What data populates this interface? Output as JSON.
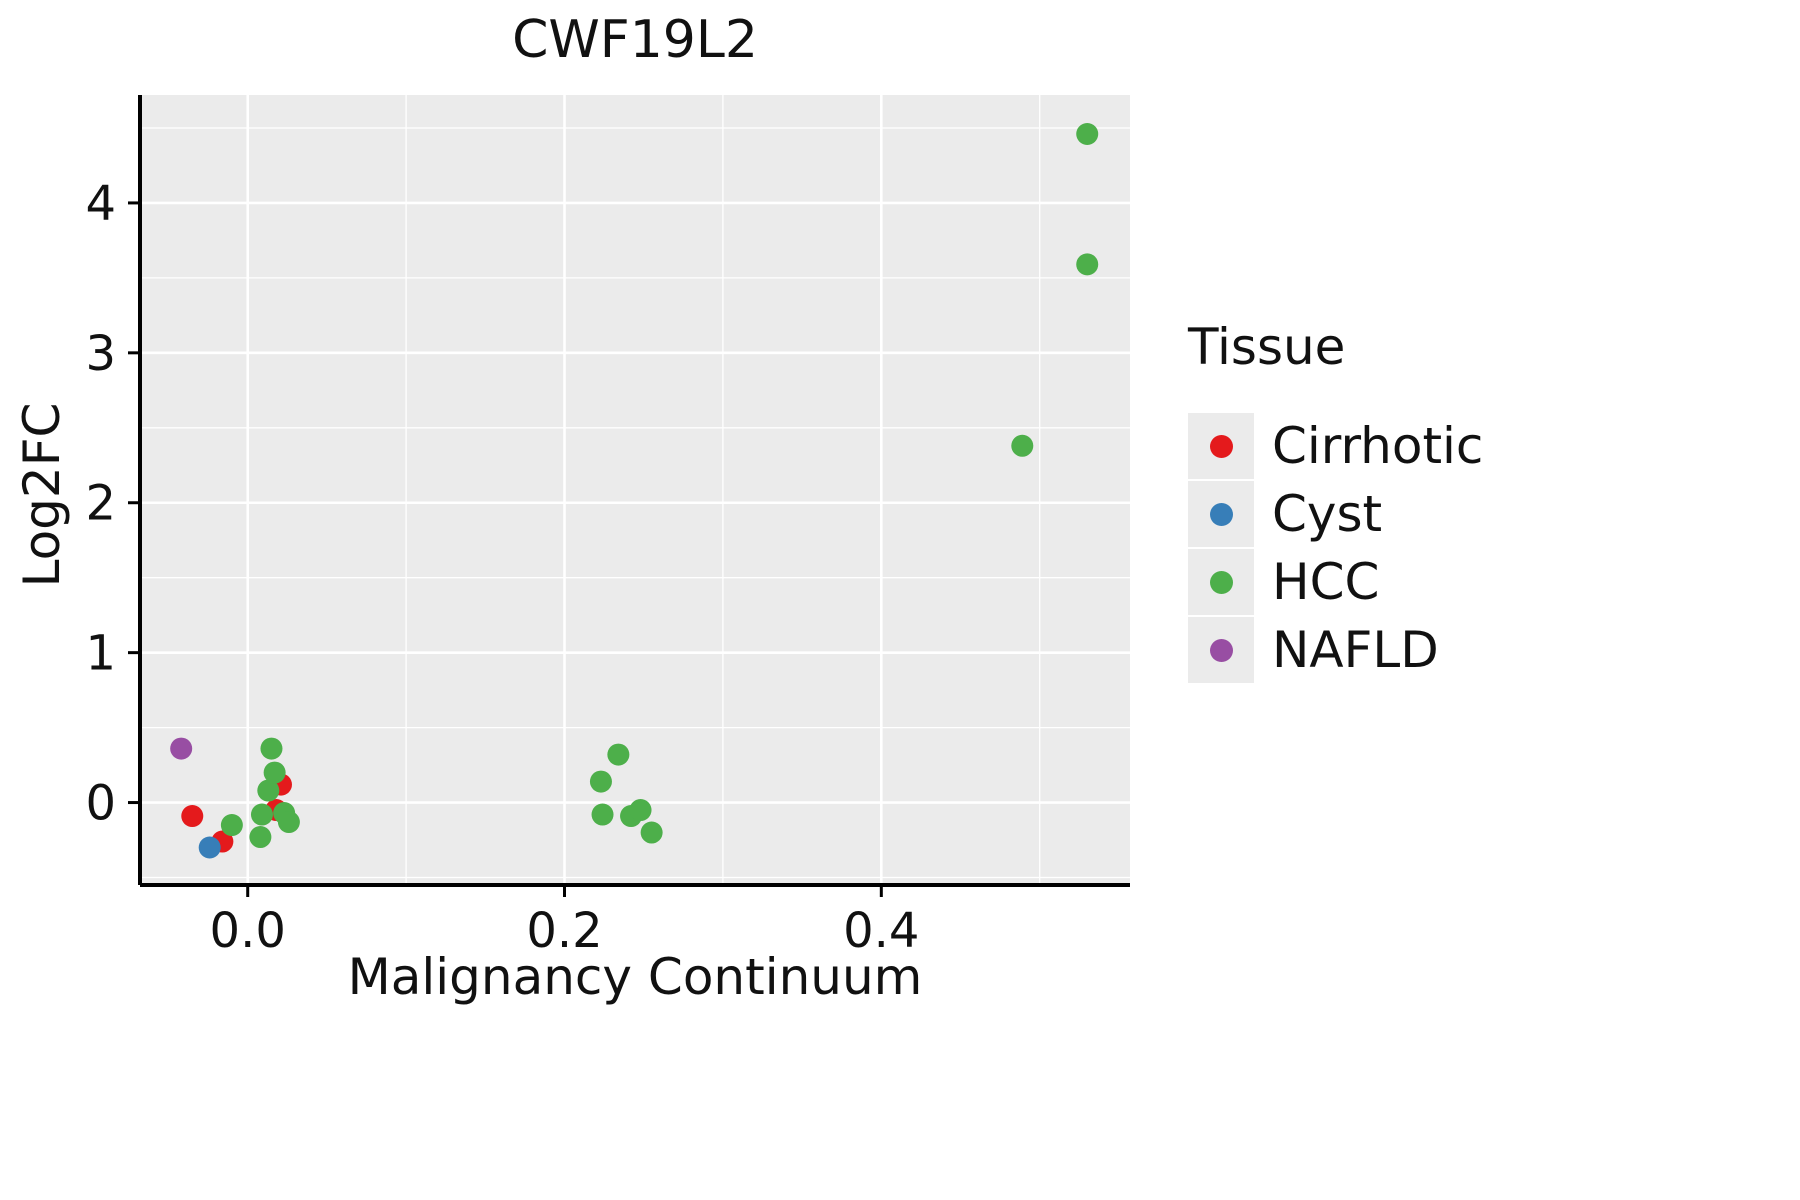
{
  "chart_data": {
    "type": "scatter",
    "title": "CWF19L2",
    "xlabel": "Malignancy Continuum",
    "ylabel": "Log2FC",
    "xlim": [
      -0.068,
      0.557
    ],
    "ylim": [
      -0.55,
      4.72
    ],
    "xticks": [
      0.0,
      0.2,
      0.4
    ],
    "xtick_labels": [
      "0.0",
      "0.2",
      "0.4"
    ],
    "yticks": [
      0,
      1,
      2,
      3,
      4
    ],
    "ytick_labels": [
      "0",
      "1",
      "2",
      "3",
      "4"
    ],
    "x_minor_ticks": [
      0.1,
      0.3,
      0.5
    ],
    "y_minor_ticks": [
      -0.5,
      0.5,
      1.5,
      2.5,
      3.5,
      4.5
    ],
    "grid": true,
    "panel_bg": "#ebebeb",
    "grid_color": "#ffffff",
    "legend_title": "Tissue",
    "legend_position": "right",
    "point_radius": 11,
    "series": [
      {
        "name": "Cirrhotic",
        "color": "#e41a1c",
        "points": [
          [
            -0.035,
            -0.09
          ],
          [
            -0.016,
            -0.26
          ],
          [
            0.018,
            -0.05
          ],
          [
            0.021,
            0.12
          ]
        ]
      },
      {
        "name": "Cyst",
        "color": "#377eb8",
        "points": [
          [
            -0.024,
            -0.3
          ]
        ]
      },
      {
        "name": "HCC",
        "color": "#4daf4a",
        "points": [
          [
            -0.01,
            -0.15
          ],
          [
            0.008,
            -0.23
          ],
          [
            0.009,
            -0.08
          ],
          [
            0.013,
            0.08
          ],
          [
            0.015,
            0.36
          ],
          [
            0.017,
            0.2
          ],
          [
            0.023,
            -0.07
          ],
          [
            0.026,
            -0.13
          ],
          [
            0.223,
            0.14
          ],
          [
            0.224,
            -0.08
          ],
          [
            0.234,
            0.32
          ],
          [
            0.242,
            -0.09
          ],
          [
            0.248,
            -0.05
          ],
          [
            0.255,
            -0.2
          ],
          [
            0.489,
            2.38
          ],
          [
            0.53,
            4.46
          ],
          [
            0.53,
            3.59
          ]
        ]
      },
      {
        "name": "NAFLD",
        "color": "#984ea3",
        "points": [
          [
            -0.042,
            0.36
          ]
        ]
      }
    ]
  }
}
